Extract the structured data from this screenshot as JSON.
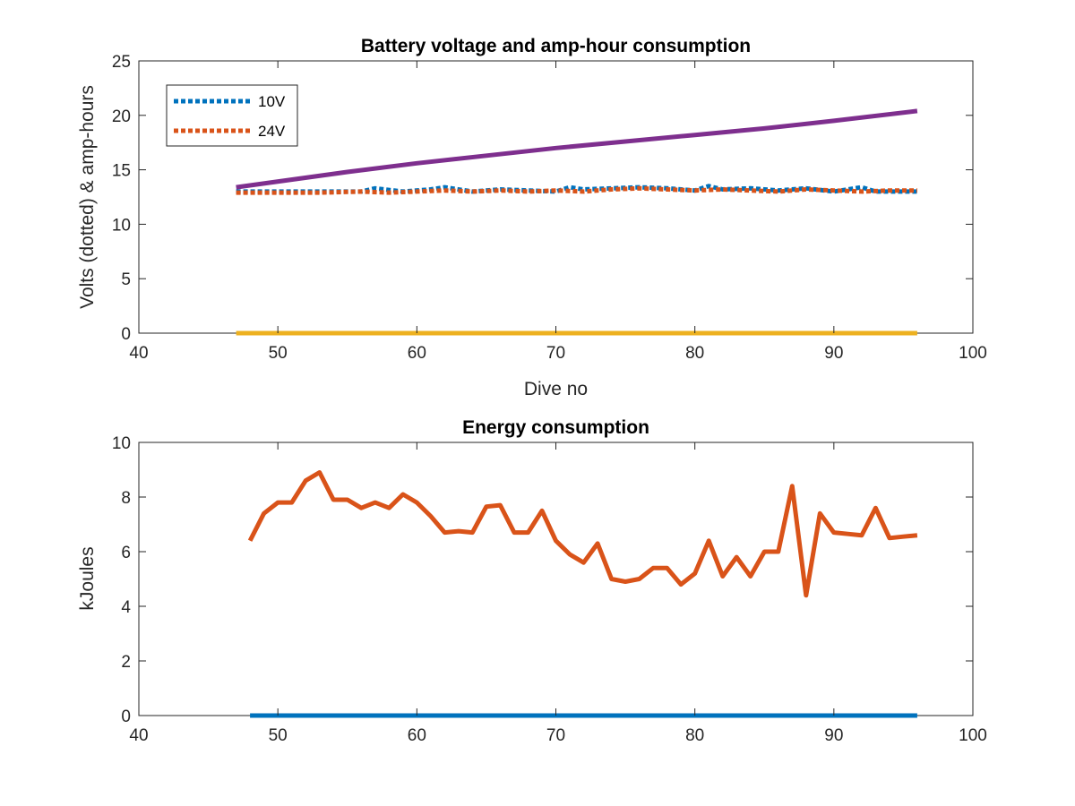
{
  "chart_data": [
    {
      "type": "line",
      "title": "Battery voltage and amp-hour consumption",
      "xlabel": "Dive no",
      "ylabel": "Volts (dotted) & amp-hours",
      "xlim": [
        40,
        100
      ],
      "ylim": [
        0,
        25
      ],
      "xticks": [
        40,
        50,
        60,
        70,
        80,
        90,
        100
      ],
      "yticks": [
        0,
        5,
        10,
        15,
        20,
        25
      ],
      "grid": false,
      "legend_position": "top-left",
      "series": [
        {
          "name": "10V",
          "color": "#0072BD",
          "style": "dotted",
          "x": [
            47,
            50,
            53,
            56,
            57,
            59,
            61,
            62,
            64,
            66,
            68,
            70,
            71,
            72,
            74,
            76,
            78,
            80,
            81,
            82,
            84,
            86,
            88,
            90,
            92,
            93,
            96
          ],
          "y": [
            13.0,
            13.0,
            13.0,
            13.0,
            13.3,
            13.0,
            13.2,
            13.4,
            13.0,
            13.2,
            13.1,
            13.0,
            13.4,
            13.2,
            13.3,
            13.4,
            13.3,
            13.1,
            13.5,
            13.2,
            13.3,
            13.1,
            13.3,
            13.0,
            13.4,
            13.0,
            13.0
          ]
        },
        {
          "name": "24V",
          "color": "#D95319",
          "style": "dotted",
          "x": [
            47,
            50,
            53,
            56,
            58,
            60,
            62,
            64,
            66,
            68,
            70,
            72,
            74,
            76,
            78,
            80,
            82,
            84,
            86,
            88,
            90,
            92,
            94,
            96
          ],
          "y": [
            12.9,
            12.9,
            12.9,
            13.0,
            12.9,
            13.0,
            13.1,
            13.0,
            13.1,
            13.0,
            13.1,
            13.0,
            13.2,
            13.3,
            13.2,
            13.1,
            13.2,
            13.1,
            13.0,
            13.2,
            13.1,
            13.0,
            13.1,
            13.1
          ]
        },
        {
          "color": "#EDB120",
          "style": "solid",
          "x": [
            47,
            96
          ],
          "y": [
            0,
            0
          ]
        },
        {
          "color": "#7E2F8E",
          "style": "solid",
          "x": [
            47,
            55,
            60,
            65,
            70,
            75,
            80,
            85,
            90,
            96
          ],
          "y": [
            13.4,
            14.8,
            15.6,
            16.3,
            17.0,
            17.6,
            18.2,
            18.8,
            19.5,
            20.4
          ]
        }
      ]
    },
    {
      "type": "line",
      "title": "Energy consumption",
      "xlabel": "",
      "ylabel": "kJoules",
      "xlim": [
        40,
        100
      ],
      "ylim": [
        0,
        10
      ],
      "xticks": [
        40,
        50,
        60,
        70,
        80,
        90,
        100
      ],
      "yticks": [
        0,
        2,
        4,
        6,
        8,
        10
      ],
      "grid": false,
      "series": [
        {
          "color": "#D95319",
          "style": "solid",
          "x": [
            48,
            49,
            50,
            51,
            52,
            53,
            54,
            55,
            56,
            57,
            58,
            59,
            60,
            61,
            62,
            63,
            64,
            65,
            66,
            67,
            68,
            69,
            70,
            71,
            72,
            73,
            74,
            75,
            76,
            77,
            78,
            79,
            80,
            81,
            82,
            83,
            84,
            85,
            86,
            87,
            88,
            89,
            90,
            91,
            92,
            93,
            94,
            95,
            96
          ],
          "y": [
            6.4,
            7.4,
            7.8,
            7.8,
            8.6,
            8.9,
            7.9,
            7.9,
            7.6,
            7.8,
            7.6,
            8.1,
            7.8,
            7.3,
            6.7,
            6.75,
            6.7,
            7.65,
            7.7,
            6.7,
            6.7,
            7.5,
            6.4,
            5.9,
            5.6,
            6.3,
            5.0,
            4.9,
            5.0,
            5.4,
            5.4,
            4.8,
            5.2,
            6.4,
            5.1,
            5.8,
            5.1,
            6.0,
            6.0,
            8.4,
            4.4,
            7.4,
            6.7,
            6.65,
            6.6,
            7.6,
            6.5,
            6.55,
            6.6
          ]
        },
        {
          "color": "#0072BD",
          "style": "solid",
          "x": [
            48,
            96
          ],
          "y": [
            0,
            0
          ]
        }
      ]
    }
  ]
}
